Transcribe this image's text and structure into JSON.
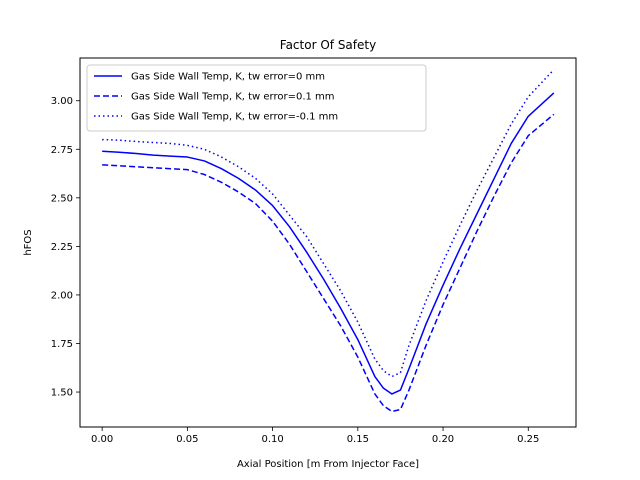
{
  "chart_data": {
    "type": "line",
    "title": "Factor Of Safety",
    "xlabel": "Axial Position [m From Injector Face]",
    "ylabel": "hFOS",
    "xlim": [
      -0.013,
      0.278
    ],
    "ylim": [
      1.32,
      3.22
    ],
    "xticks": [
      0.0,
      0.05,
      0.1,
      0.15,
      0.2,
      0.25
    ],
    "xtick_labels": [
      "0.00",
      "0.05",
      "0.10",
      "0.15",
      "0.20",
      "0.25"
    ],
    "yticks": [
      1.5,
      1.75,
      2.0,
      2.25,
      2.5,
      2.75,
      3.0
    ],
    "ytick_labels": [
      "1.50",
      "1.75",
      "2.00",
      "2.25",
      "2.50",
      "2.75",
      "3.00"
    ],
    "grid": false,
    "legend_position": "top-left",
    "color": "#0000ff",
    "series": [
      {
        "name": "Gas Side Wall Temp, K, tw error=0 mm",
        "style": "solid",
        "x": [
          0.0,
          0.01,
          0.02,
          0.03,
          0.04,
          0.05,
          0.06,
          0.07,
          0.08,
          0.09,
          0.1,
          0.11,
          0.12,
          0.13,
          0.14,
          0.15,
          0.16,
          0.165,
          0.17,
          0.175,
          0.18,
          0.19,
          0.2,
          0.21,
          0.22,
          0.23,
          0.24,
          0.25,
          0.265
        ],
        "y": [
          2.74,
          2.735,
          2.728,
          2.72,
          2.715,
          2.71,
          2.69,
          2.65,
          2.6,
          2.54,
          2.46,
          2.35,
          2.22,
          2.08,
          1.93,
          1.77,
          1.58,
          1.52,
          1.49,
          1.51,
          1.62,
          1.85,
          2.05,
          2.24,
          2.42,
          2.6,
          2.78,
          2.92,
          3.04
        ]
      },
      {
        "name": "Gas Side Wall Temp, K, tw error=0.1 mm",
        "style": "dashed",
        "x": [
          0.0,
          0.01,
          0.02,
          0.03,
          0.04,
          0.05,
          0.06,
          0.07,
          0.08,
          0.09,
          0.1,
          0.11,
          0.12,
          0.13,
          0.14,
          0.15,
          0.16,
          0.165,
          0.17,
          0.175,
          0.18,
          0.19,
          0.2,
          0.21,
          0.22,
          0.23,
          0.24,
          0.25,
          0.265
        ],
        "y": [
          2.67,
          2.665,
          2.66,
          2.655,
          2.65,
          2.645,
          2.62,
          2.58,
          2.53,
          2.47,
          2.38,
          2.26,
          2.12,
          1.98,
          1.84,
          1.68,
          1.49,
          1.43,
          1.4,
          1.41,
          1.51,
          1.74,
          1.95,
          2.14,
          2.33,
          2.51,
          2.68,
          2.82,
          2.93
        ]
      },
      {
        "name": "Gas Side Wall Temp, K, tw error=-0.1 mm",
        "style": "dotted",
        "x": [
          0.0,
          0.01,
          0.02,
          0.03,
          0.04,
          0.05,
          0.06,
          0.07,
          0.08,
          0.09,
          0.1,
          0.11,
          0.12,
          0.13,
          0.14,
          0.15,
          0.16,
          0.165,
          0.17,
          0.175,
          0.18,
          0.19,
          0.2,
          0.21,
          0.22,
          0.23,
          0.24,
          0.25,
          0.265
        ],
        "y": [
          2.8,
          2.797,
          2.79,
          2.785,
          2.78,
          2.77,
          2.75,
          2.71,
          2.66,
          2.6,
          2.52,
          2.41,
          2.3,
          2.16,
          2.02,
          1.86,
          1.67,
          1.61,
          1.58,
          1.6,
          1.74,
          1.97,
          2.17,
          2.36,
          2.54,
          2.71,
          2.88,
          3.02,
          3.16
        ]
      }
    ]
  }
}
